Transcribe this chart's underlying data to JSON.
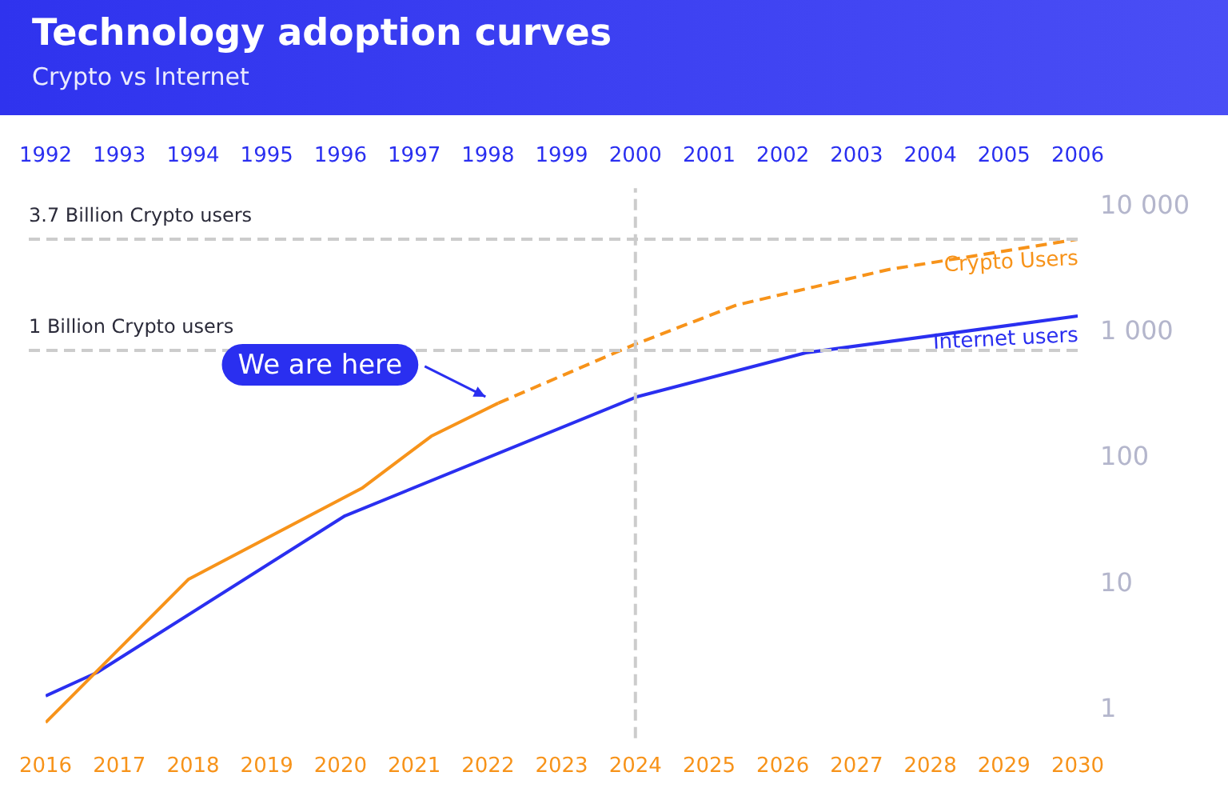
{
  "chart_data": {
    "type": "line",
    "title": "Technology adoption curves",
    "subtitle": "Crypto vs Internet",
    "log": "y",
    "grid": false,
    "legend": false,
    "marker": "none",
    "xlim": [
      2016,
      2030
    ],
    "xticks": [
      2016,
      2017,
      2018,
      2019,
      2020,
      2021,
      2022,
      2023,
      2024,
      2025,
      2026,
      2027,
      2028,
      2029,
      2030
    ],
    "x2lim": [
      1992,
      2006
    ],
    "x2ticks": [
      1992,
      1993,
      1994,
      1995,
      1996,
      1997,
      1998,
      1999,
      2000,
      2001,
      2002,
      2003,
      2004,
      2005,
      2006
    ],
    "ylim": [
      0.6,
      14000
    ],
    "yticks": [
      1,
      10,
      100,
      {
        "value": 1000,
        "label": "1 000"
      },
      {
        "value": 10000,
        "label": "10 000"
      }
    ],
    "series": [
      {
        "color": "#f7931a",
        "line_style": "solid",
        "x": [
          2016,
          2017.94,
          2020.29,
          2021.23,
          2022.14
        ],
        "values": [
          0.8,
          11,
          58,
          150,
          275
        ]
      },
      {
        "name": "Crypto Users",
        "color": "#f7931a",
        "line_style": "dashed",
        "x": [
          2022.14,
          2023.98,
          2025.37,
          2027.42,
          2030
        ],
        "values": [
          275,
          800,
          1650,
          3150,
          5500
        ]
      },
      {
        "name": "Internet users",
        "color": "#2a2ff0",
        "line_style": "solid",
        "x": [
          2016,
          2016.7,
          2020.06,
          2024.03,
          2026.31,
          2030
        ],
        "values": [
          1.3,
          2,
          35,
          310,
          690,
          1350
        ]
      }
    ],
    "ref_lines": [
      {
        "axis": "y",
        "value": 5500,
        "label": "3.7 Billion Crypto users",
        "color": "#cccccc",
        "line_style": "dashed"
      },
      {
        "axis": "y",
        "value": 720,
        "label": "1 Billion Crypto users",
        "color": "#cccccc",
        "line_style": "dashed"
      },
      {
        "axis": "x",
        "value": 2024,
        "label": null,
        "color": "#cccccc",
        "line_style": "dashed"
      }
    ],
    "annotations": [
      {
        "text": "We are here",
        "x": 2022.14,
        "y": 275
      }
    ]
  }
}
